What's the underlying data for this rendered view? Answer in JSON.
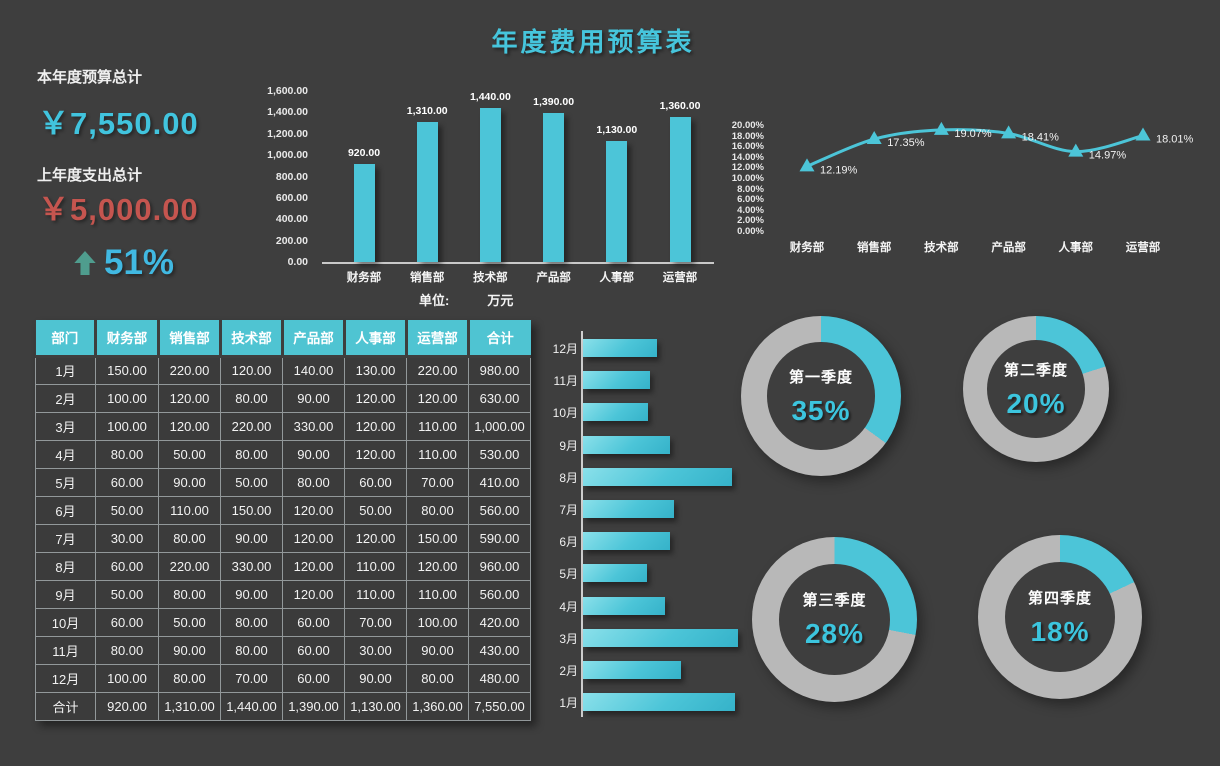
{
  "title": "年度费用预算表",
  "summary": {
    "budget_label": "本年度预算总计",
    "budget_value": "￥7,550.00",
    "spend_label": "上年度支出总计",
    "spend_value": "￥5,000.00",
    "growth_icon": "up-arrow",
    "growth_value": "51%"
  },
  "unit_note": {
    "label": "单位:",
    "value": "万元"
  },
  "colors": {
    "background": "#3e3e3e",
    "accent": "#4cc5d8",
    "accent_text": "#41c4de",
    "negative": "#c5554f",
    "arrow_green": "#4f9d8e",
    "donut_gray": "#b8b8b8",
    "text": "#f2f2f2"
  },
  "table": {
    "columns": [
      "部门",
      "财务部",
      "销售部",
      "技术部",
      "产品部",
      "人事部",
      "运营部",
      "合计"
    ],
    "rows": [
      [
        "1月",
        "150.00",
        "220.00",
        "120.00",
        "140.00",
        "130.00",
        "220.00",
        "980.00"
      ],
      [
        "2月",
        "100.00",
        "120.00",
        "80.00",
        "90.00",
        "120.00",
        "120.00",
        "630.00"
      ],
      [
        "3月",
        "100.00",
        "120.00",
        "220.00",
        "330.00",
        "120.00",
        "110.00",
        "1,000.00"
      ],
      [
        "4月",
        "80.00",
        "50.00",
        "80.00",
        "90.00",
        "120.00",
        "110.00",
        "530.00"
      ],
      [
        "5月",
        "60.00",
        "90.00",
        "50.00",
        "80.00",
        "60.00",
        "70.00",
        "410.00"
      ],
      [
        "6月",
        "50.00",
        "110.00",
        "150.00",
        "120.00",
        "50.00",
        "80.00",
        "560.00"
      ],
      [
        "7月",
        "30.00",
        "80.00",
        "90.00",
        "120.00",
        "120.00",
        "150.00",
        "590.00"
      ],
      [
        "8月",
        "60.00",
        "220.00",
        "330.00",
        "120.00",
        "110.00",
        "120.00",
        "960.00"
      ],
      [
        "9月",
        "50.00",
        "80.00",
        "90.00",
        "120.00",
        "110.00",
        "110.00",
        "560.00"
      ],
      [
        "10月",
        "60.00",
        "50.00",
        "80.00",
        "60.00",
        "70.00",
        "100.00",
        "420.00"
      ],
      [
        "11月",
        "80.00",
        "90.00",
        "80.00",
        "60.00",
        "30.00",
        "90.00",
        "430.00"
      ],
      [
        "12月",
        "100.00",
        "80.00",
        "70.00",
        "60.00",
        "90.00",
        "80.00",
        "480.00"
      ],
      [
        "合计",
        "920.00",
        "1,310.00",
        "1,440.00",
        "1,390.00",
        "1,130.00",
        "1,360.00",
        "7,550.00"
      ]
    ]
  },
  "chart_data": [
    {
      "type": "bar",
      "name": "department-budget-columns",
      "categories": [
        "财务部",
        "销售部",
        "技术部",
        "产品部",
        "人事部",
        "运营部"
      ],
      "values": [
        920,
        1310,
        1440,
        1390,
        1130,
        1360
      ],
      "value_labels": [
        "920.00",
        "1,310.00",
        "1,440.00",
        "1,390.00",
        "1,130.00",
        "1,360.00"
      ],
      "ylim": [
        0,
        1600
      ],
      "ytick_labels": [
        "1,600.00",
        "1,400.00",
        "1,200.00",
        "1,000.00",
        "800.00",
        "600.00",
        "400.00",
        "200.00",
        "0.00"
      ],
      "unit": "万元",
      "grid": false,
      "legend": "none"
    },
    {
      "type": "line",
      "name": "department-share-line",
      "categories": [
        "财务部",
        "销售部",
        "技术部",
        "产品部",
        "人事部",
        "运营部"
      ],
      "values": [
        12.19,
        17.35,
        19.07,
        18.41,
        14.97,
        18.01
      ],
      "point_labels": [
        "12.19%",
        "17.35%",
        "19.07%",
        "18.41%",
        "14.97%",
        "18.01%"
      ],
      "ylim": [
        0,
        20
      ],
      "ytick_labels": [
        "20.00%",
        "18.00%",
        "16.00%",
        "14.00%",
        "12.00%",
        "10.00%",
        "8.00%",
        "6.00%",
        "4.00%",
        "2.00%",
        "0.00%"
      ],
      "marker": "triangle",
      "grid": false,
      "legend": "none"
    },
    {
      "type": "bar-horizontal",
      "name": "monthly-total-bars",
      "categories": [
        "12月",
        "11月",
        "10月",
        "9月",
        "8月",
        "7月",
        "6月",
        "5月",
        "4月",
        "3月",
        "2月",
        "1月"
      ],
      "values": [
        480,
        430,
        420,
        560,
        960,
        590,
        560,
        410,
        530,
        1000,
        630,
        980
      ],
      "xlim": [
        0,
        1000
      ],
      "grid": false,
      "legend": "none"
    },
    {
      "type": "donut",
      "name": "quarterly-share-donuts",
      "items": [
        {
          "label": "第一季度",
          "pct": 35,
          "pct_label": "35%"
        },
        {
          "label": "第二季度",
          "pct": 20,
          "pct_label": "20%"
        },
        {
          "label": "第三季度",
          "pct": 28,
          "pct_label": "28%"
        },
        {
          "label": "第四季度",
          "pct": 18,
          "pct_label": "18%"
        }
      ]
    }
  ]
}
